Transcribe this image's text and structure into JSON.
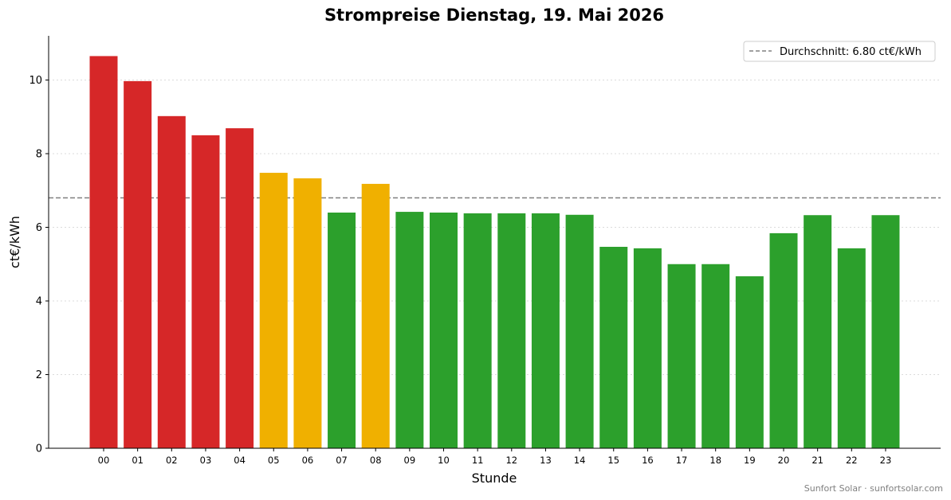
{
  "chart_data": {
    "type": "bar",
    "title": "Strompreise Dienstag, 19. Mai 2026",
    "xlabel": "Stunde",
    "ylabel": "ct€/kWh",
    "ylim": [
      0,
      11.2
    ],
    "yticks": [
      "0",
      "2",
      "4",
      "6",
      "8",
      "10"
    ],
    "grid": "horizontal dotted",
    "legend_position": "top-right",
    "categories": [
      "00",
      "01",
      "02",
      "03",
      "04",
      "05",
      "06",
      "07",
      "08",
      "09",
      "10",
      "11",
      "12",
      "13",
      "14",
      "15",
      "16",
      "17",
      "18",
      "19",
      "20",
      "21",
      "22",
      "23"
    ],
    "values": [
      10.65,
      9.97,
      9.02,
      8.5,
      8.69,
      7.48,
      7.33,
      6.4,
      7.18,
      6.42,
      6.4,
      6.38,
      6.38,
      6.38,
      6.34,
      5.47,
      5.43,
      5.0,
      5.0,
      4.67,
      5.84,
      6.33,
      5.43,
      6.33
    ],
    "bar_levels": [
      "high",
      "high",
      "high",
      "high",
      "high",
      "mid",
      "mid",
      "low",
      "mid",
      "low",
      "low",
      "low",
      "low",
      "low",
      "low",
      "low",
      "low",
      "low",
      "low",
      "low",
      "low",
      "low",
      "low",
      "low"
    ],
    "level_colors": {
      "high": "#d62728",
      "mid": "#f0b000",
      "low": "#2ca02c"
    },
    "average": {
      "value": 6.8,
      "label": "Durchschnitt: 6.80 ct€/kWh",
      "color": "#808080",
      "style": "dashed"
    }
  },
  "footer": {
    "credit": "Sunfort Solar · sunfortsolar.com"
  }
}
